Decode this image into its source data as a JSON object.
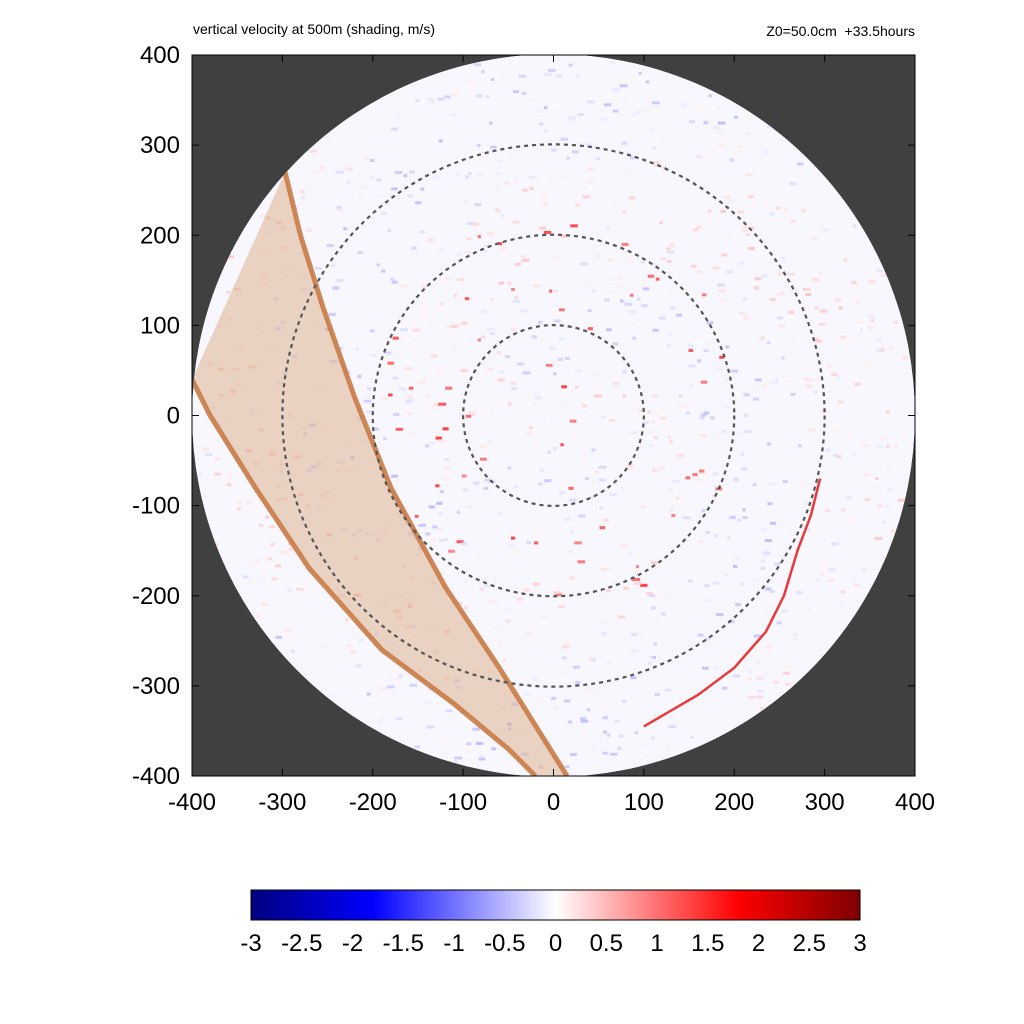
{
  "chart_data": {
    "type": "heatmap",
    "title": "vertical velocity at 500m (shading, m/s)",
    "subtitle": "Z0=50.0cm  +33.5hours",
    "xlim": [
      -400,
      400
    ],
    "ylim": [
      -400,
      400
    ],
    "x_ticks": [
      "-400",
      "-300",
      "-200",
      "-100",
      "0",
      "100",
      "200",
      "300",
      "400"
    ],
    "y_ticks": [
      "400",
      "300",
      "200",
      "100",
      "0",
      "-100",
      "-200",
      "-300",
      "-400"
    ],
    "x_tick_values": [
      -400,
      -300,
      -200,
      -100,
      0,
      100,
      200,
      300,
      400
    ],
    "y_tick_values": [
      400,
      300,
      200,
      100,
      0,
      -100,
      -200,
      -300,
      -400
    ],
    "domain_radius": 400,
    "range_rings": [
      100,
      200,
      300
    ],
    "colorbar": {
      "min": -3,
      "max": 3,
      "ticks": [
        "-3",
        "-2.5",
        "-2",
        "-1.5",
        "-1",
        "-0.5",
        "0",
        "0.5",
        "1",
        "1.5",
        "2",
        "2.5",
        "3"
      ],
      "tick_values": [
        -3,
        -2.5,
        -2,
        -1.5,
        -1,
        -0.5,
        0,
        0.5,
        1,
        1.5,
        2,
        2.5,
        3
      ],
      "colors": [
        "#00007f",
        "#0000ff",
        "#ffffff",
        "#ff0000",
        "#7f0000"
      ]
    },
    "band_boundaries": [
      {
        "points": [
          [
            -297,
            270
          ],
          [
            -280,
            200
          ],
          [
            -255,
            120
          ],
          [
            -220,
            20
          ],
          [
            -180,
            -80
          ],
          [
            -120,
            -190
          ],
          [
            -60,
            -280
          ],
          [
            15,
            -400
          ]
        ]
      },
      {
        "points": [
          [
            -400,
            40
          ],
          [
            -380,
            0
          ],
          [
            -330,
            -80
          ],
          [
            -270,
            -170
          ],
          [
            -190,
            -260
          ],
          [
            -110,
            -320
          ],
          [
            -50,
            -370
          ],
          [
            -20,
            -400
          ]
        ]
      }
    ],
    "colors": {
      "background": "#404040",
      "band_fill": "#d9a47a",
      "band_edge": "#c97a45",
      "ring": "#555555"
    }
  }
}
